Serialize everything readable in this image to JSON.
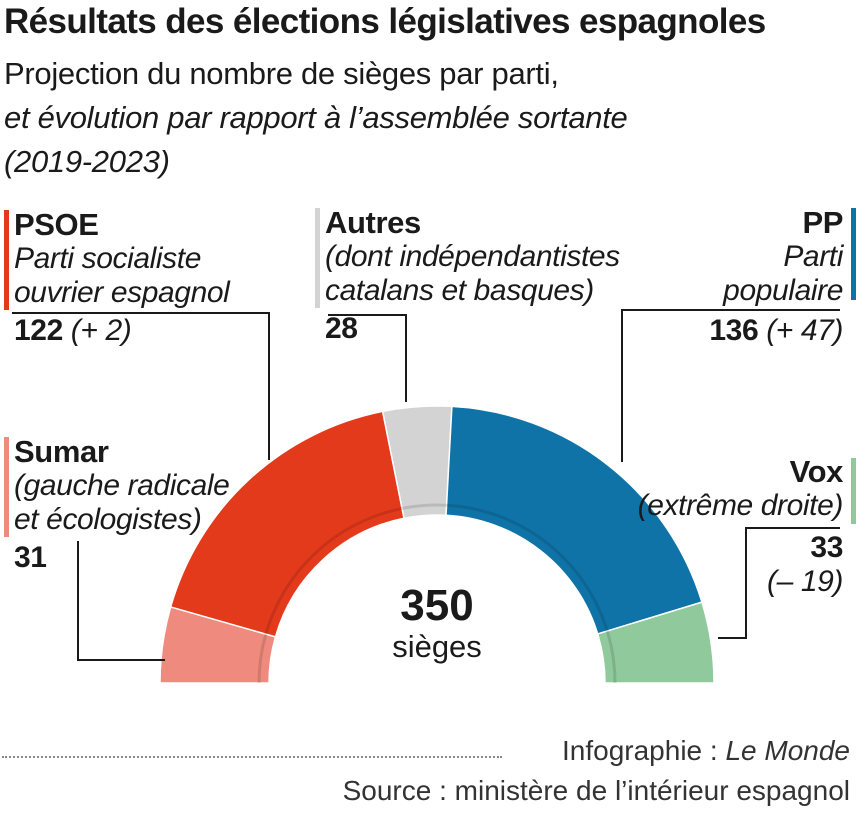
{
  "title": "Résultats des élections législatives espagnoles",
  "subtitle_line1": "Projection du nombre de sièges par parti,",
  "subtitle_line2": "et évolution par rapport à l’assemblée sortante",
  "subtitle_line3": "(2019-2023)",
  "total": {
    "value": "350",
    "unit": "sièges"
  },
  "footer": {
    "credit_prefix": "Infographie : ",
    "credit_name": "Le Monde",
    "source": "Source : ministère de l’intérieur espagnol"
  },
  "labels": {
    "psoe": {
      "name": "PSOE",
      "desc1": "Parti socialiste",
      "desc2": "ouvrier espagnol",
      "seats": "122",
      "change": "(+ 2)"
    },
    "sumar": {
      "name": "Sumar",
      "desc1": "(gauche radicale",
      "desc2": "et écologistes)",
      "seats": "31"
    },
    "autres": {
      "name": "Autres",
      "desc1": "(dont indépendantistes",
      "desc2": "catalans et basques)",
      "seats": "28"
    },
    "pp": {
      "name": "PP",
      "desc1": "Parti",
      "desc2": "populaire",
      "seats": "136",
      "change": "(+ 47)"
    },
    "vox": {
      "name": "Vox",
      "desc1": "(extrême droite)",
      "seats": "33",
      "change": "(– 19)"
    }
  },
  "chart_data": {
    "type": "pie",
    "shape": "half-donut",
    "total": 350,
    "series": [
      {
        "party": "Sumar",
        "seats": 31,
        "change": null,
        "color": "#ef8a7e"
      },
      {
        "party": "PSOE",
        "seats": 122,
        "change": 2,
        "color": "#e43a1c"
      },
      {
        "party": "Autres",
        "seats": 28,
        "change": null,
        "color": "#d3d3d3"
      },
      {
        "party": "PP",
        "seats": 136,
        "change": 47,
        "color": "#0f73a8"
      },
      {
        "party": "Vox",
        "seats": 33,
        "change": -19,
        "color": "#90c99c"
      }
    ]
  }
}
